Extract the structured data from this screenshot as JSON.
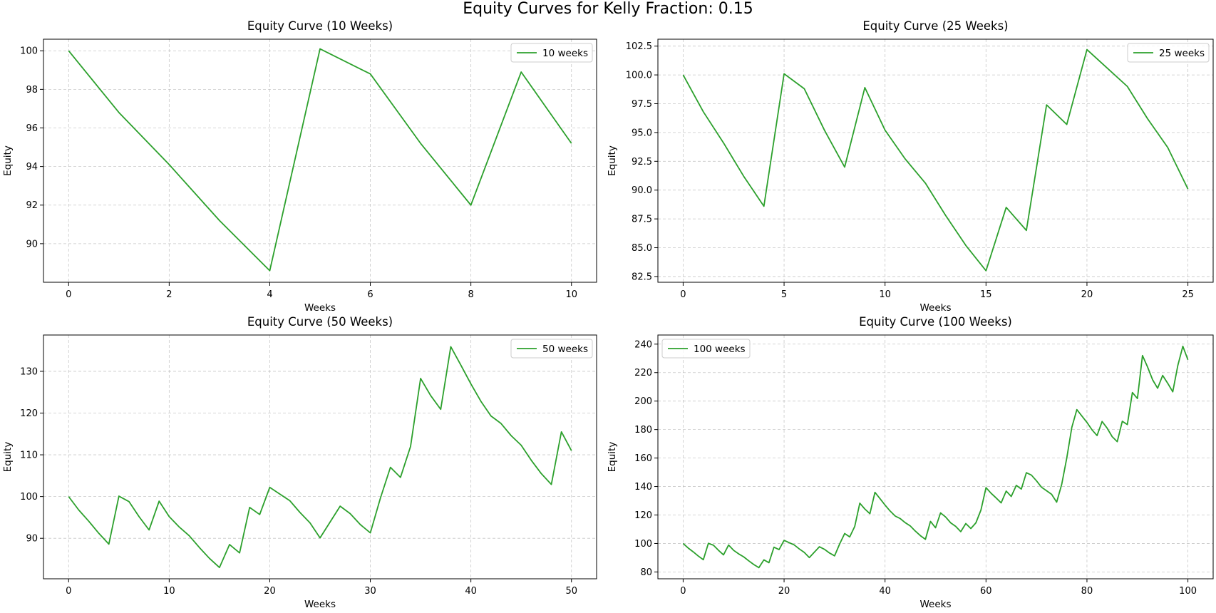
{
  "figure": {
    "suptitle": "Equity Curves for Kelly Fraction: 0.15"
  },
  "colors": {
    "line": "#2ca02c",
    "grid": "#b0b0b0",
    "axis": "#000000"
  },
  "chart_data": [
    {
      "type": "line",
      "title": "Equity Curve (10 Weeks)",
      "xlabel": "Weeks",
      "ylabel": "Equity",
      "xlim": [
        -0.5,
        10.5
      ],
      "ylim": [
        88.0,
        100.6
      ],
      "xticks": [
        0,
        2,
        4,
        6,
        8,
        10
      ],
      "yticks": [
        90,
        92,
        94,
        96,
        98,
        100
      ],
      "ytick_labels": [
        "90",
        "92",
        "94",
        "96",
        "98",
        "100"
      ],
      "grid": true,
      "legend_loc": "upper right",
      "series": [
        {
          "name": "10 weeks",
          "x": [
            0,
            1,
            2,
            3,
            4,
            5,
            6,
            7,
            8,
            9,
            10
          ],
          "y": [
            100.0,
            96.8,
            94.1,
            91.2,
            88.6,
            100.1,
            98.8,
            95.2,
            92.0,
            98.9,
            95.2
          ]
        }
      ]
    },
    {
      "type": "line",
      "title": "Equity Curve (25 Weeks)",
      "xlabel": "Weeks",
      "ylabel": "Equity",
      "xlim": [
        -1.25,
        26.25
      ],
      "ylim": [
        82.0,
        103.1
      ],
      "xticks": [
        0,
        5,
        10,
        15,
        20,
        25
      ],
      "yticks": [
        82.5,
        85.0,
        87.5,
        90.0,
        92.5,
        95.0,
        97.5,
        100.0,
        102.5
      ],
      "ytick_labels": [
        "82.5",
        "85.0",
        "87.5",
        "90.0",
        "92.5",
        "95.0",
        "97.5",
        "100.0",
        "102.5"
      ],
      "grid": true,
      "legend_loc": "upper right",
      "series": [
        {
          "name": "25 weeks",
          "x": [
            0,
            1,
            2,
            3,
            4,
            5,
            6,
            7,
            8,
            9,
            10,
            11,
            12,
            13,
            14,
            15,
            16,
            17,
            18,
            19,
            20,
            21,
            22,
            23,
            24,
            25
          ],
          "y": [
            100.0,
            96.8,
            94.1,
            91.2,
            88.6,
            100.1,
            98.8,
            95.2,
            92.0,
            98.9,
            95.2,
            92.7,
            90.6,
            87.8,
            85.2,
            83.0,
            88.5,
            86.5,
            97.4,
            95.7,
            102.2,
            100.6,
            99.0,
            96.2,
            93.7,
            90.1
          ]
        }
      ]
    },
    {
      "type": "line",
      "title": "Equity Curve (50 Weeks)",
      "xlabel": "Weeks",
      "ylabel": "Equity",
      "xlim": [
        -2.5,
        52.5
      ],
      "ylim": [
        80.3,
        138.7
      ],
      "xticks": [
        0,
        10,
        20,
        30,
        40,
        50
      ],
      "yticks": [
        90,
        100,
        110,
        120,
        130
      ],
      "ytick_labels": [
        "90",
        "100",
        "110",
        "120",
        "130"
      ],
      "grid": true,
      "legend_loc": "upper right",
      "series": [
        {
          "name": "50 weeks",
          "x": [
            0,
            1,
            2,
            3,
            4,
            5,
            6,
            7,
            8,
            9,
            10,
            11,
            12,
            13,
            14,
            15,
            16,
            17,
            18,
            19,
            20,
            21,
            22,
            23,
            24,
            25,
            26,
            27,
            28,
            29,
            30,
            31,
            32,
            33,
            34,
            35,
            36,
            37,
            38,
            39,
            40,
            41,
            42,
            43,
            44,
            45,
            46,
            47,
            48,
            49,
            50
          ],
          "y": [
            100.0,
            96.8,
            94.1,
            91.2,
            88.6,
            100.1,
            98.8,
            95.2,
            92.0,
            98.9,
            95.2,
            92.7,
            90.6,
            87.8,
            85.2,
            83.0,
            88.5,
            86.5,
            97.4,
            95.7,
            102.2,
            100.6,
            99.0,
            96.2,
            93.7,
            90.1,
            93.9,
            97.7,
            95.9,
            93.3,
            91.3,
            99.6,
            107.0,
            104.6,
            112.0,
            128.3,
            124.2,
            120.9,
            135.9,
            131.5,
            127.0,
            122.8,
            119.3,
            117.5,
            114.6,
            112.3,
            108.7,
            105.5,
            102.9,
            115.5,
            111.0
          ]
        }
      ]
    },
    {
      "type": "line",
      "title": "Equity Curve (100 Weeks)",
      "xlabel": "Weeks",
      "ylabel": "Equity",
      "xlim": [
        -5,
        105
      ],
      "ylim": [
        75.2,
        246.4
      ],
      "xticks": [
        0,
        20,
        40,
        60,
        80,
        100
      ],
      "yticks": [
        80,
        100,
        120,
        140,
        160,
        180,
        200,
        220,
        240
      ],
      "ytick_labels": [
        "80",
        "100",
        "120",
        "140",
        "160",
        "180",
        "200",
        "220",
        "240"
      ],
      "grid": true,
      "legend_loc": "upper left",
      "series": [
        {
          "name": "100 weeks",
          "x": [
            0,
            1,
            2,
            3,
            4,
            5,
            6,
            7,
            8,
            9,
            10,
            11,
            12,
            13,
            14,
            15,
            16,
            17,
            18,
            19,
            20,
            21,
            22,
            23,
            24,
            25,
            26,
            27,
            28,
            29,
            30,
            31,
            32,
            33,
            34,
            35,
            36,
            37,
            38,
            39,
            40,
            41,
            42,
            43,
            44,
            45,
            46,
            47,
            48,
            49,
            50,
            51,
            52,
            53,
            54,
            55,
            56,
            57,
            58,
            59,
            60,
            61,
            62,
            63,
            64,
            65,
            66,
            67,
            68,
            69,
            70,
            71,
            72,
            73,
            74,
            75,
            76,
            77,
            78,
            79,
            80,
            81,
            82,
            83,
            84,
            85,
            86,
            87,
            88,
            89,
            90,
            91,
            92,
            93,
            94,
            95,
            96,
            97,
            98,
            99,
            100
          ],
          "y": [
            100.0,
            96.8,
            94.1,
            91.2,
            88.6,
            100.1,
            98.8,
            95.2,
            92.0,
            98.9,
            95.2,
            92.7,
            90.6,
            87.8,
            85.2,
            83.0,
            88.5,
            86.5,
            97.4,
            95.7,
            102.2,
            100.6,
            99.0,
            96.2,
            93.7,
            90.1,
            93.9,
            97.7,
            95.9,
            93.3,
            91.3,
            99.6,
            107.0,
            104.6,
            112.0,
            128.3,
            124.2,
            120.9,
            135.9,
            131.5,
            127.0,
            122.8,
            119.3,
            117.5,
            114.6,
            112.3,
            108.7,
            105.5,
            102.9,
            115.5,
            111.0,
            121.5,
            118.6,
            114.5,
            112.0,
            108.3,
            114.0,
            110.5,
            114.5,
            123.5,
            139.2,
            135.3,
            132.0,
            128.5,
            136.8,
            133.0,
            140.8,
            138.2,
            149.7,
            148.0,
            144.0,
            139.5,
            137.0,
            134.5,
            129.0,
            141.5,
            160.0,
            181.5,
            194.0,
            189.5,
            185.0,
            179.8,
            175.8,
            185.7,
            181.0,
            175.0,
            171.5,
            185.8,
            183.5,
            206.0,
            201.8,
            232.0,
            224.0,
            215.0,
            209.0,
            218.0,
            212.5,
            206.5,
            225.0,
            238.5,
            229.0
          ]
        }
      ]
    }
  ]
}
